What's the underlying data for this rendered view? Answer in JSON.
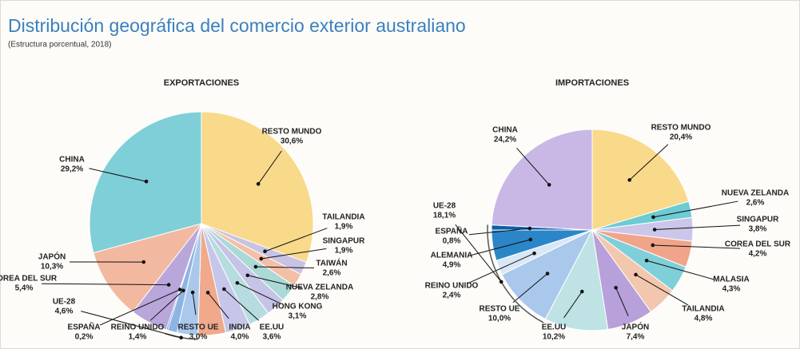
{
  "title": "Distribución geográfica del comercio exterior australiano",
  "subtitle": "(Estructura porcentual, 2018)",
  "chart_data": [
    {
      "type": "pie",
      "title": "EXPORTACIONES",
      "categories": [
        "RESTO MUNDO",
        "TAILANDIA",
        "SINGAPUR",
        "TAIWÁN",
        "NUEVA ZELANDA",
        "HONG KONG",
        "EE.UU",
        "INDIA",
        "RESTO UE",
        "REINO UNIDO",
        "ESPAÑA",
        "COREA DEL SUR",
        "JAPÓN",
        "CHINA"
      ],
      "values": [
        30.6,
        1.9,
        1.9,
        2.6,
        2.8,
        3.1,
        3.6,
        4.0,
        3.0,
        1.4,
        0.2,
        5.4,
        10.3,
        29.2
      ],
      "value_labels": [
        "30,6%",
        "1,9%",
        "1,9%",
        "2,6%",
        "2,8%",
        "3,1%",
        "3,6%",
        "4,0%",
        "3,0%",
        "1,4%",
        "0,2%",
        "5,4%",
        "10,3%",
        "29,2%"
      ],
      "colors": [
        "#f9d98a",
        "#c9c3e3",
        "#f3bfa6",
        "#aad9d6",
        "#c5c3e6",
        "#b7dcdf",
        "#c6c6ea",
        "#f0a98a",
        "#a9c8ec",
        "#8fb4e4",
        "#1a72b8",
        "#b9a6da",
        "#f3b9a0",
        "#7fcfd8"
      ],
      "groups": [
        {
          "name": "UE-28",
          "value": 4.6,
          "value_label": "4,6%"
        }
      ]
    },
    {
      "type": "pie",
      "title": "IMPORTACIONES",
      "categories": [
        "RESTO MUNDO",
        "NUEVA ZELANDA",
        "SINGAPUR",
        "COREA DEL SUR",
        "MALASIA",
        "TAILANDIA",
        "JAPÓN",
        "EE.UU",
        "RESTO UE",
        "REINO UNIDO",
        "ALEMANIA",
        "ESPAÑA",
        "CHINA"
      ],
      "values": [
        20.4,
        2.6,
        3.8,
        4.2,
        4.3,
        4.8,
        7.4,
        10.2,
        10.0,
        2.4,
        4.9,
        0.8,
        24.2
      ],
      "value_labels": [
        "20,4%",
        "2,6%",
        "3,8%",
        "4,2%",
        "4,3%",
        "4,8%",
        "7,4%",
        "10,2%",
        "10,0%",
        "2,4%",
        "4,9%",
        "0,8%",
        "24,2%"
      ],
      "colors": [
        "#f9d98a",
        "#6ccbd3",
        "#cbc6ea",
        "#f0a48a",
        "#7fcfd8",
        "#f3c6ae",
        "#b8a0da",
        "#bfe3e4",
        "#a9c8ec",
        "#d8e6f5",
        "#2b86c8",
        "#0c5fa8",
        "#c9b8e6"
      ],
      "groups": [
        {
          "name": "UE-28",
          "value": 18.1,
          "value_label": "18,1%"
        }
      ]
    }
  ]
}
